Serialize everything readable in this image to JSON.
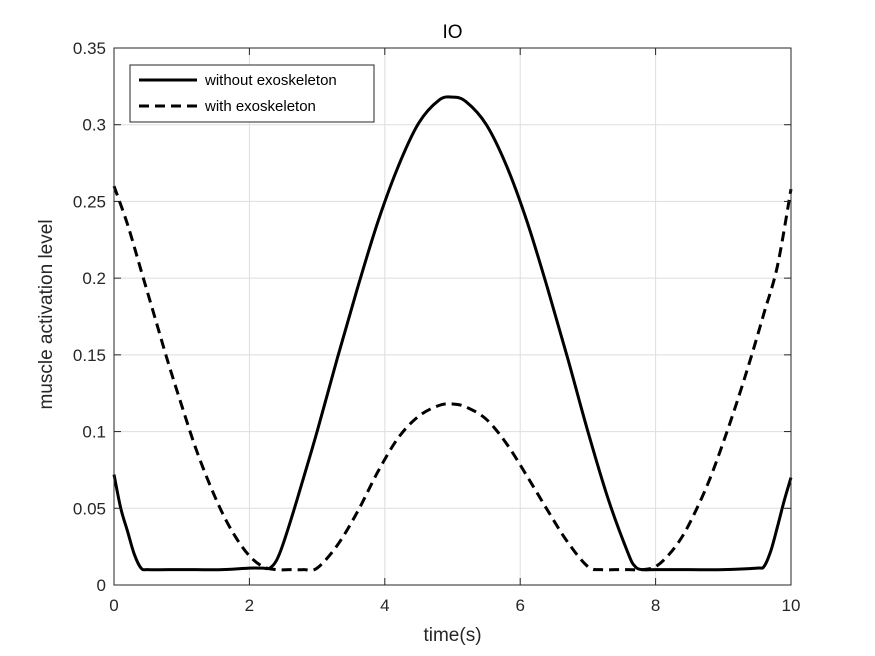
{
  "chart_data": {
    "type": "line",
    "title": "IO",
    "xlabel": "time(s)",
    "ylabel": "muscle activation level",
    "xlim": [
      0,
      10
    ],
    "ylim": [
      0,
      0.35
    ],
    "xticks": [
      0,
      2,
      4,
      6,
      8,
      10
    ],
    "xtick_labels": [
      "0",
      "2",
      "4",
      "6",
      "8",
      "10"
    ],
    "yticks": [
      0,
      0.05,
      0.1,
      0.15,
      0.2,
      0.25,
      0.3,
      0.35
    ],
    "ytick_labels": [
      "0",
      "0.05",
      "0.1",
      "0.15",
      "0.2",
      "0.25",
      "0.3",
      "0.35"
    ],
    "grid": true,
    "legend_position": "top-left",
    "series": [
      {
        "name": "without exoskeleton",
        "style": "solid",
        "color": "#000000",
        "x": [
          0,
          0.1,
          0.2,
          0.3,
          0.4,
          0.5,
          0.8,
          1.2,
          1.6,
          2.0,
          2.2,
          2.3,
          2.4,
          2.5,
          2.7,
          3.0,
          3.3,
          3.6,
          3.9,
          4.2,
          4.5,
          4.8,
          5.0,
          5.2,
          5.5,
          5.8,
          6.1,
          6.4,
          6.7,
          7.0,
          7.3,
          7.6,
          7.7,
          7.8,
          8.0,
          8.5,
          9.0,
          9.5,
          9.6,
          9.7,
          9.8,
          9.9,
          10.0
        ],
        "y": [
          0.072,
          0.05,
          0.035,
          0.02,
          0.011,
          0.01,
          0.01,
          0.01,
          0.01,
          0.011,
          0.011,
          0.011,
          0.016,
          0.027,
          0.055,
          0.1,
          0.148,
          0.194,
          0.237,
          0.273,
          0.301,
          0.316,
          0.318,
          0.315,
          0.3,
          0.273,
          0.237,
          0.194,
          0.148,
          0.1,
          0.056,
          0.02,
          0.012,
          0.01,
          0.01,
          0.01,
          0.01,
          0.011,
          0.012,
          0.022,
          0.038,
          0.055,
          0.07
        ]
      },
      {
        "name": "with exoskeleton",
        "style": "dashed",
        "color": "#000000",
        "x": [
          0,
          0.2,
          0.4,
          0.6,
          0.8,
          1.0,
          1.2,
          1.4,
          1.6,
          1.8,
          2.0,
          2.2,
          2.4,
          2.6,
          2.8,
          3.0,
          3.3,
          3.6,
          3.9,
          4.2,
          4.5,
          4.8,
          5.0,
          5.2,
          5.5,
          5.8,
          6.1,
          6.4,
          6.7,
          7.0,
          7.2,
          7.4,
          7.6,
          7.8,
          8.0,
          8.2,
          8.4,
          8.6,
          8.8,
          9.0,
          9.2,
          9.4,
          9.6,
          9.8,
          10.0
        ],
        "y": [
          0.26,
          0.235,
          0.205,
          0.175,
          0.145,
          0.117,
          0.09,
          0.067,
          0.047,
          0.031,
          0.019,
          0.012,
          0.01,
          0.01,
          0.01,
          0.011,
          0.026,
          0.048,
          0.074,
          0.096,
          0.11,
          0.117,
          0.118,
          0.116,
          0.108,
          0.092,
          0.071,
          0.049,
          0.028,
          0.012,
          0.01,
          0.01,
          0.01,
          0.01,
          0.012,
          0.02,
          0.032,
          0.049,
          0.069,
          0.093,
          0.119,
          0.147,
          0.177,
          0.208,
          0.258
        ]
      }
    ]
  }
}
